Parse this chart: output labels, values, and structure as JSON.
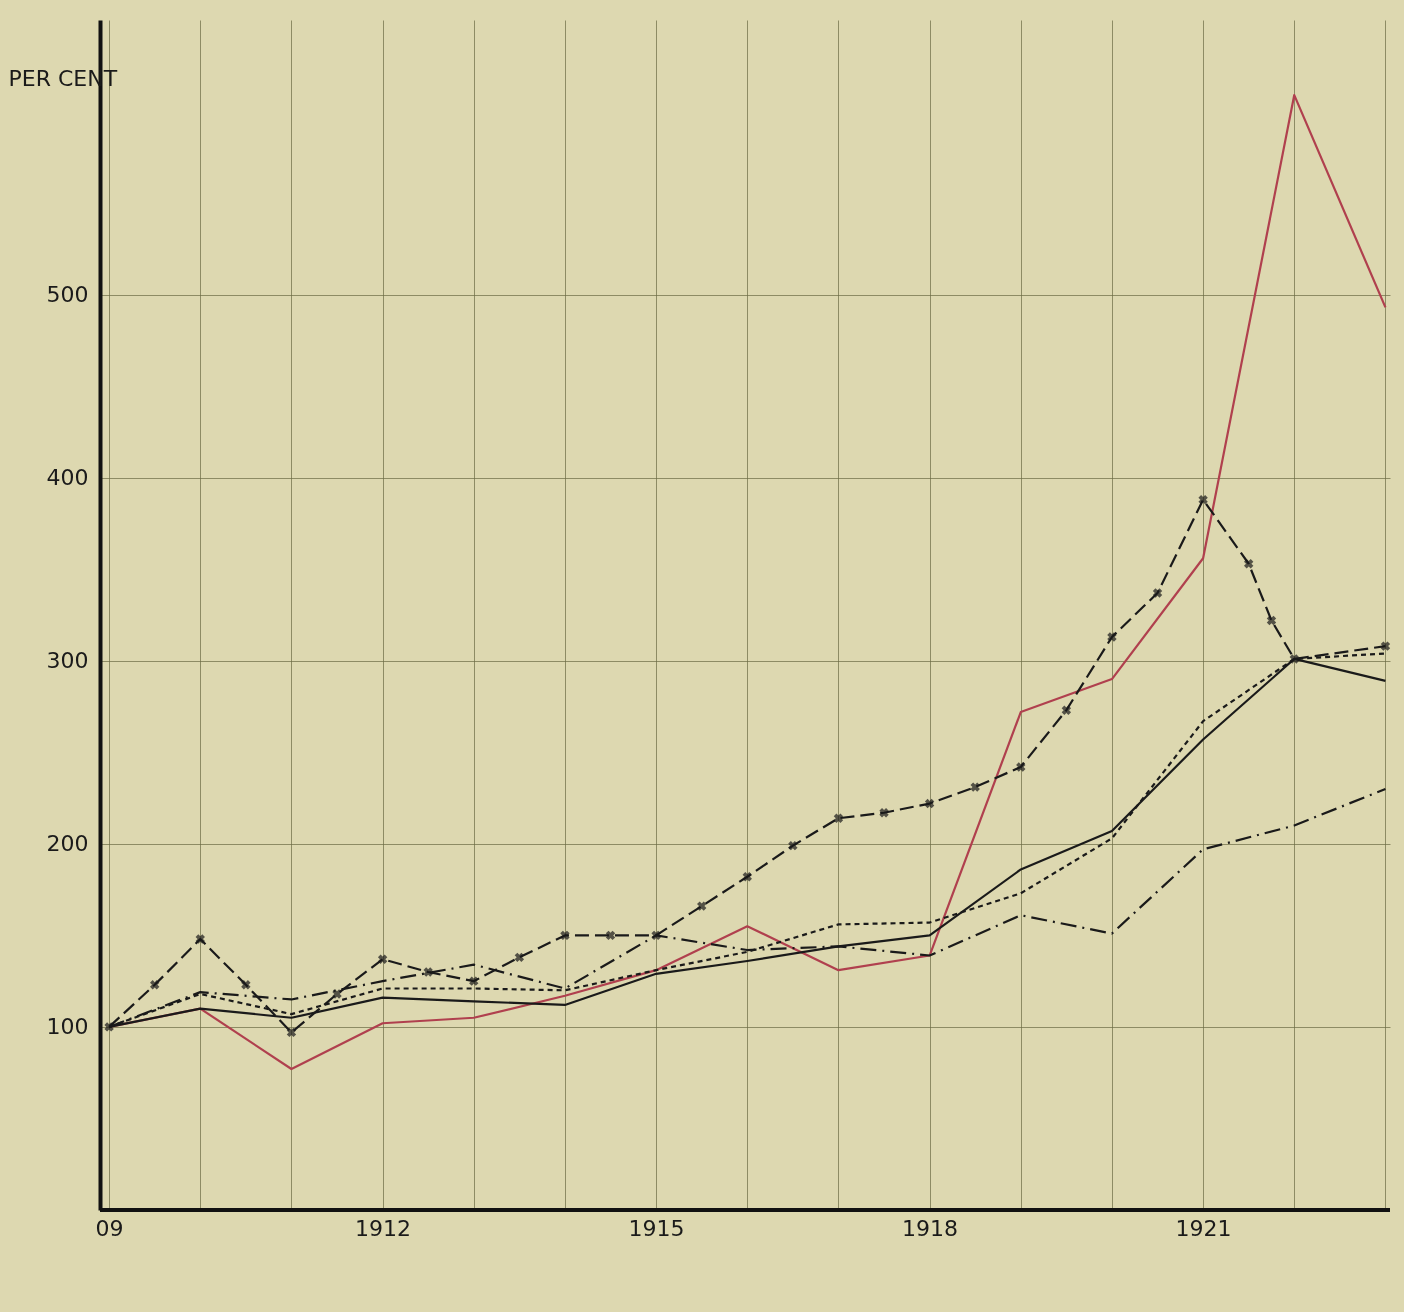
{
  "chart_data": {
    "type": "line",
    "ylabel": "PER CENT",
    "grid": true,
    "x": [
      1909,
      1910,
      1911,
      1912,
      1913,
      1914,
      1915,
      1916,
      1917,
      1918,
      1919,
      1920,
      1921,
      1922,
      1923
    ],
    "xlim": [
      1908.9,
      1923.05
    ],
    "ylim": [
      0,
      650
    ],
    "xticks": [
      {
        "value": 1909,
        "label": "09"
      },
      {
        "value": 1910,
        "label": null
      },
      {
        "value": 1911,
        "label": null
      },
      1912,
      {
        "value": 1913,
        "label": null
      },
      {
        "value": 1914,
        "label": null
      },
      1915,
      {
        "value": 1916,
        "label": null
      },
      {
        "value": 1917,
        "label": null
      },
      1918,
      {
        "value": 1919,
        "label": null
      },
      {
        "value": 1920,
        "label": null
      },
      1921,
      {
        "value": 1922,
        "label": null
      },
      {
        "value": 1923,
        "label": null
      }
    ],
    "yticks": [
      100,
      200,
      300,
      400,
      500
    ],
    "series": [
      {
        "color": "#b0404e",
        "line_style": "solid",
        "marker": "none",
        "values": [
          100,
          110,
          77,
          102,
          105,
          117,
          131,
          155,
          131,
          139,
          272,
          290,
          356,
          609,
          493
        ]
      },
      {
        "color": "#1a1a1a",
        "line_style": "solid",
        "marker": "none",
        "values": [
          100,
          110,
          105,
          116,
          114,
          112,
          129,
          136,
          144,
          150,
          186,
          207,
          257,
          301,
          289
        ]
      },
      {
        "color": "#1a1a1a",
        "line_style": "dotted",
        "marker": "none",
        "values": [
          100,
          118,
          107,
          121,
          121,
          120,
          131,
          141,
          156,
          157,
          173,
          203,
          267,
          301,
          304
        ]
      },
      {
        "color": "#1a1a1a",
        "line_style": "dashdot",
        "marker": "none",
        "values": [
          100,
          119,
          115,
          125,
          134,
          121,
          150,
          142,
          144,
          139,
          161,
          151,
          197,
          210,
          230
        ]
      },
      {
        "color": "#1a1a1a",
        "line_style": "dashed",
        "marker": "cross",
        "x": [
          1909,
          1909.5,
          1910,
          1910.5,
          1911,
          1911.5,
          1912,
          1912.5,
          1913,
          1913.5,
          1914,
          1914.5,
          1915,
          1915.5,
          1916,
          1916.5,
          1917,
          1917.5,
          1918,
          1918.5,
          1919,
          1919.5,
          1920,
          1920.5,
          1921,
          1921.5,
          1921.75,
          1922,
          1923
        ],
        "values": [
          100,
          123,
          148,
          123,
          97,
          118,
          137,
          130,
          125,
          138,
          150,
          150,
          150,
          166,
          182,
          199,
          214,
          217,
          222,
          231,
          242,
          273,
          313,
          337,
          388,
          353,
          322,
          301,
          308
        ]
      }
    ]
  }
}
